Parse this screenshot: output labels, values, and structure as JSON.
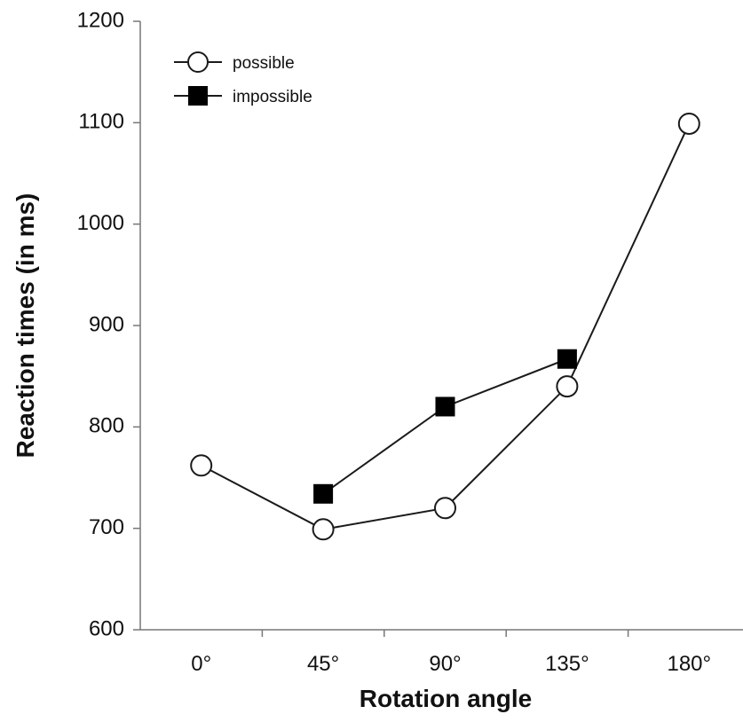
{
  "chart_data": {
    "type": "line",
    "categories": [
      "0°",
      "45°",
      "90°",
      "135°",
      "180°"
    ],
    "series": [
      {
        "name": "possible",
        "marker": "circle",
        "values": [
          762,
          699,
          720,
          840,
          1099
        ]
      },
      {
        "name": "impossible",
        "marker": "square",
        "values": [
          null,
          734,
          820,
          867,
          null
        ]
      }
    ],
    "xlabel": "Rotation angle",
    "ylabel": "Reaction times (in ms)",
    "ylim": [
      600,
      1200
    ],
    "yticks": [
      "600",
      "700",
      "800",
      "900",
      "1000",
      "1100",
      "1200"
    ],
    "grid": false,
    "legend_position": "top-left",
    "colors": {
      "line": "#1a1a1a",
      "possible_marker_fill": "#ffffff",
      "impossible_marker_fill": "#000000"
    }
  }
}
